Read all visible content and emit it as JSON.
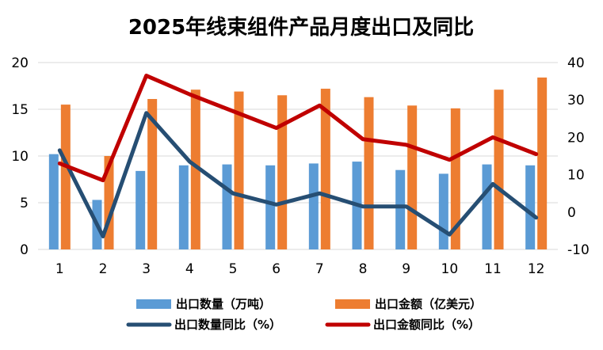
{
  "chart_data": {
    "type": "bar",
    "title": "2025年线束组件产品月度出口及同比",
    "categories": [
      "1",
      "2",
      "3",
      "4",
      "5",
      "6",
      "7",
      "8",
      "9",
      "10",
      "11",
      "12"
    ],
    "left_axis": {
      "ylim": [
        0,
        20
      ],
      "ticks": [
        "0",
        "5",
        "10",
        "15",
        "20"
      ]
    },
    "right_axis": {
      "ylim": [
        -10,
        40
      ],
      "ticks": [
        "-10",
        "0",
        "10",
        "20",
        "30",
        "40"
      ]
    },
    "grid": true,
    "legend_position": "bottom",
    "series": [
      {
        "name": "出口数量（万吨）",
        "kind": "bar",
        "axis": "left",
        "color": "#5B9BD5",
        "values": [
          10.2,
          5.3,
          8.4,
          9.0,
          9.1,
          9.0,
          9.2,
          9.4,
          8.5,
          8.1,
          9.1,
          9.0
        ]
      },
      {
        "name": "出口金额（亿美元）",
        "kind": "bar",
        "axis": "left",
        "color": "#ED7D31",
        "values": [
          15.5,
          10.0,
          16.1,
          17.1,
          16.9,
          16.5,
          17.2,
          16.3,
          15.4,
          15.1,
          17.1,
          18.4
        ]
      },
      {
        "name": "出口数量同比（%）",
        "kind": "line",
        "axis": "right",
        "color": "#264E73",
        "values": [
          16.5,
          -6.5,
          26.5,
          13.5,
          5.0,
          2.0,
          5.0,
          1.5,
          1.5,
          -6.0,
          7.5,
          -1.5
        ]
      },
      {
        "name": "出口金额同比（%）",
        "kind": "line",
        "axis": "right",
        "color": "#C00000",
        "values": [
          13.0,
          8.5,
          36.5,
          31.5,
          27.0,
          22.5,
          28.5,
          19.5,
          18.0,
          14.0,
          20.0,
          15.5
        ]
      }
    ]
  }
}
